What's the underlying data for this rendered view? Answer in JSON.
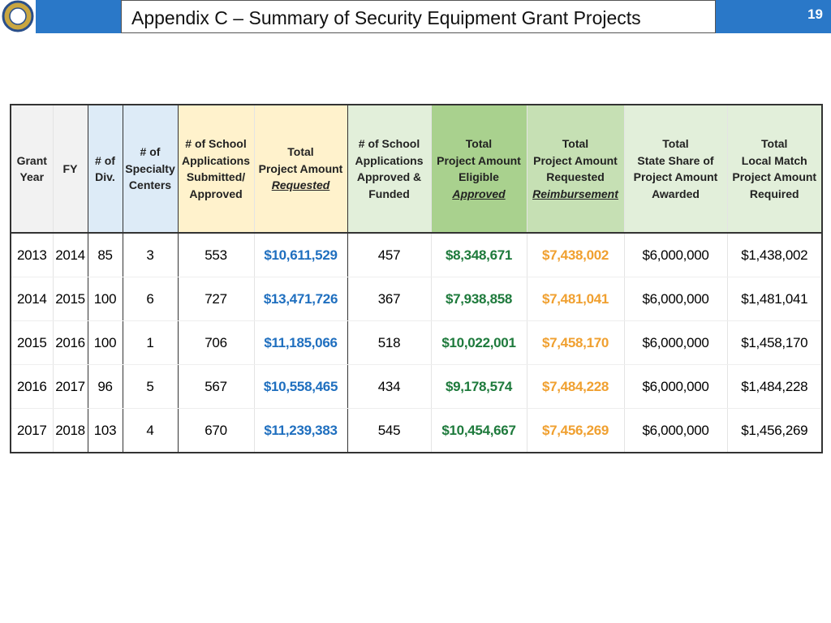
{
  "header": {
    "title": "Appendix C – Summary of Security Equipment Grant Projects",
    "page_number": "19"
  },
  "table": {
    "columns": [
      [
        "Grant",
        "Year"
      ],
      [
        "FY"
      ],
      [
        "# of",
        "Div."
      ],
      [
        "# of",
        "Specialty",
        "Centers"
      ],
      [
        "# of School",
        "Applications",
        "Submitted/",
        "Approved"
      ],
      [
        "Total",
        "Project Amount",
        "Requested"
      ],
      [
        "# of School",
        "Applications",
        "Approved &",
        "Funded"
      ],
      [
        "Total",
        "Project Amount",
        "Eligible",
        "Approved"
      ],
      [
        "Total",
        "Project Amount",
        "Requested",
        "Reimbursement"
      ],
      [
        "Total",
        "State Share of",
        "Project Amount",
        "Awarded"
      ],
      [
        "Total",
        "Local Match",
        "Project Amount",
        "Required"
      ]
    ],
    "rows": [
      [
        "2013",
        "2014",
        "85",
        "3",
        "553",
        "$10,611,529",
        "457",
        "$8,348,671",
        "$7,438,002",
        "$6,000,000",
        "$1,438,002"
      ],
      [
        "2014",
        "2015",
        "100",
        "6",
        "727",
        "$13,471,726",
        "367",
        "$7,938,858",
        "$7,481,041",
        "$6,000,000",
        "$1,481,041"
      ],
      [
        "2015",
        "2016",
        "100",
        "1",
        "706",
        "$11,185,066",
        "518",
        "$10,022,001",
        "$7,458,170",
        "$6,000,000",
        "$1,458,170"
      ],
      [
        "2016",
        "2017",
        "96",
        "5",
        "567",
        "$10,558,465",
        "434",
        "$9,178,574",
        "$7,484,228",
        "$6,000,000",
        "$1,484,228"
      ],
      [
        "2017",
        "2018",
        "103",
        "4",
        "670",
        "$11,239,383",
        "545",
        "$10,454,667",
        "$7,456,269",
        "$6,000,000",
        "$1,456,269"
      ]
    ]
  }
}
